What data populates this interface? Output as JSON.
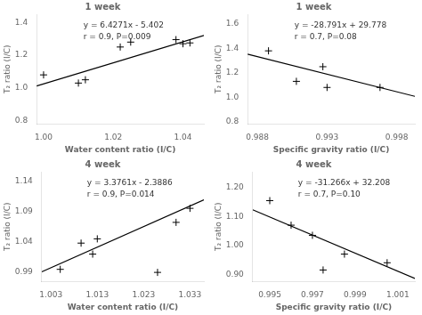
{
  "chart_data": [
    {
      "type": "scatter",
      "title": "1 week",
      "x_label": "Water content ratio (I/C)",
      "y_label": "T₂ ratio (I/C)",
      "annotations": [
        "y = 6.4271x - 5.402",
        "r = 0.9, P=0.009"
      ],
      "series": [
        {
          "type": "scatter",
          "color": "#000000",
          "marker": "plus",
          "x": [
            1.0,
            1.01,
            1.012,
            1.022,
            1.025,
            1.038,
            1.04,
            1.042
          ],
          "values": [
            1.08,
            1.03,
            1.05,
            1.25,
            1.28,
            1.295,
            1.27,
            1.275
          ]
        },
        {
          "type": "line",
          "color": "#000000",
          "line_style": "solid",
          "x": [
            0.998,
            1.046
          ],
          "values": [
            1.0122458,
            1.3207466
          ]
        }
      ],
      "xlim": [
        0.998,
        1.046
      ],
      "ylim": [
        0.78,
        1.45
      ],
      "xticks": [
        {
          "value": 1.0,
          "label": "1.00"
        },
        1.02,
        1.04
      ],
      "yticks": [
        0.8,
        {
          "value": 1.0,
          "label": "1.0"
        },
        1.2,
        1.4
      ],
      "grid": false
    },
    {
      "type": "scatter",
      "title": "1 week",
      "x_label": "Specific gravity ratio (I/C)",
      "y_label": "T₂ ratio (I/C)",
      "annotations": [
        "y = -28.791x + 29.778",
        "r = 0.7, P=0.08"
      ],
      "series": [
        {
          "type": "scatter",
          "color": "#000000",
          "marker": "plus",
          "x": [
            0.9888,
            0.9908,
            0.9927,
            0.993,
            0.9968
          ],
          "values": [
            1.38,
            1.13,
            1.25,
            1.08,
            1.08
          ]
        },
        {
          "type": "line",
          "color": "#000000",
          "line_style": "solid",
          "x": [
            0.9873,
            0.9993
          ],
          "values": [
            1.3526457,
            1.0071537
          ]
        }
      ],
      "xlim": [
        0.9873,
        0.9993
      ],
      "ylim": [
        0.78,
        1.68
      ],
      "xticks": [
        0.988,
        0.993,
        0.998
      ],
      "yticks": [
        0.8,
        {
          "value": 1.0,
          "label": "1.0"
        },
        1.2,
        1.4,
        1.6
      ],
      "grid": false
    },
    {
      "type": "scatter",
      "title": "4 week",
      "x_label": "Water content ratio (I/C)",
      "y_label": "T₂ ratio (I/C)",
      "annotations": [
        "y = 3.3761x - 2.3886",
        "r = 0.9, P=0.014"
      ],
      "series": [
        {
          "type": "scatter",
          "color": "#000000",
          "marker": "plus",
          "x": [
            1.005,
            1.0095,
            1.012,
            1.013,
            1.026,
            1.03,
            1.033
          ],
          "values": [
            0.995,
            1.038,
            1.02,
            1.045,
            0.99,
            1.072,
            1.095
          ]
        },
        {
          "type": "line",
          "color": "#000000",
          "line_style": "solid",
          "x": [
            1.001,
            1.036
          ],
          "values": [
            0.9908761,
            1.1090396
          ]
        }
      ],
      "xlim": [
        1.001,
        1.036
      ],
      "ylim": [
        0.975,
        1.155
      ],
      "xticks": [
        1.003,
        1.013,
        1.023,
        1.033
      ],
      "yticks": [
        0.99,
        1.04,
        1.09,
        1.14
      ],
      "grid": false
    },
    {
      "type": "scatter",
      "title": "4 week",
      "x_label": "Specific gravity ratio (I/C)",
      "y_label": "T₂ ratio (I/C)",
      "annotations": [
        "y = -31.266x + 32.208",
        "r = 0.7, P=0.10"
      ],
      "series": [
        {
          "type": "scatter",
          "color": "#000000",
          "marker": "plus",
          "x": [
            0.995,
            0.996,
            0.997,
            0.9975,
            0.9985,
            1.0005
          ],
          "values": [
            1.155,
            1.07,
            1.035,
            0.915,
            0.97,
            0.94
          ]
        },
        {
          "type": "line",
          "color": "#000000",
          "line_style": "solid",
          "x": [
            0.9942,
            1.0018
          ],
          "values": [
            1.1233428,
            0.8857212
          ]
        }
      ],
      "xlim": [
        0.9942,
        1.0018
      ],
      "ylim": [
        0.875,
        1.255
      ],
      "xticks": [
        0.995,
        0.997,
        0.999,
        1.001
      ],
      "yticks": [
        {
          "value": 0.9,
          "label": "0.90"
        },
        {
          "value": 1.0,
          "label": "1.00"
        },
        {
          "value": 1.1,
          "label": "1.10"
        },
        {
          "value": 1.2,
          "label": "1.20"
        }
      ],
      "grid": false
    }
  ]
}
